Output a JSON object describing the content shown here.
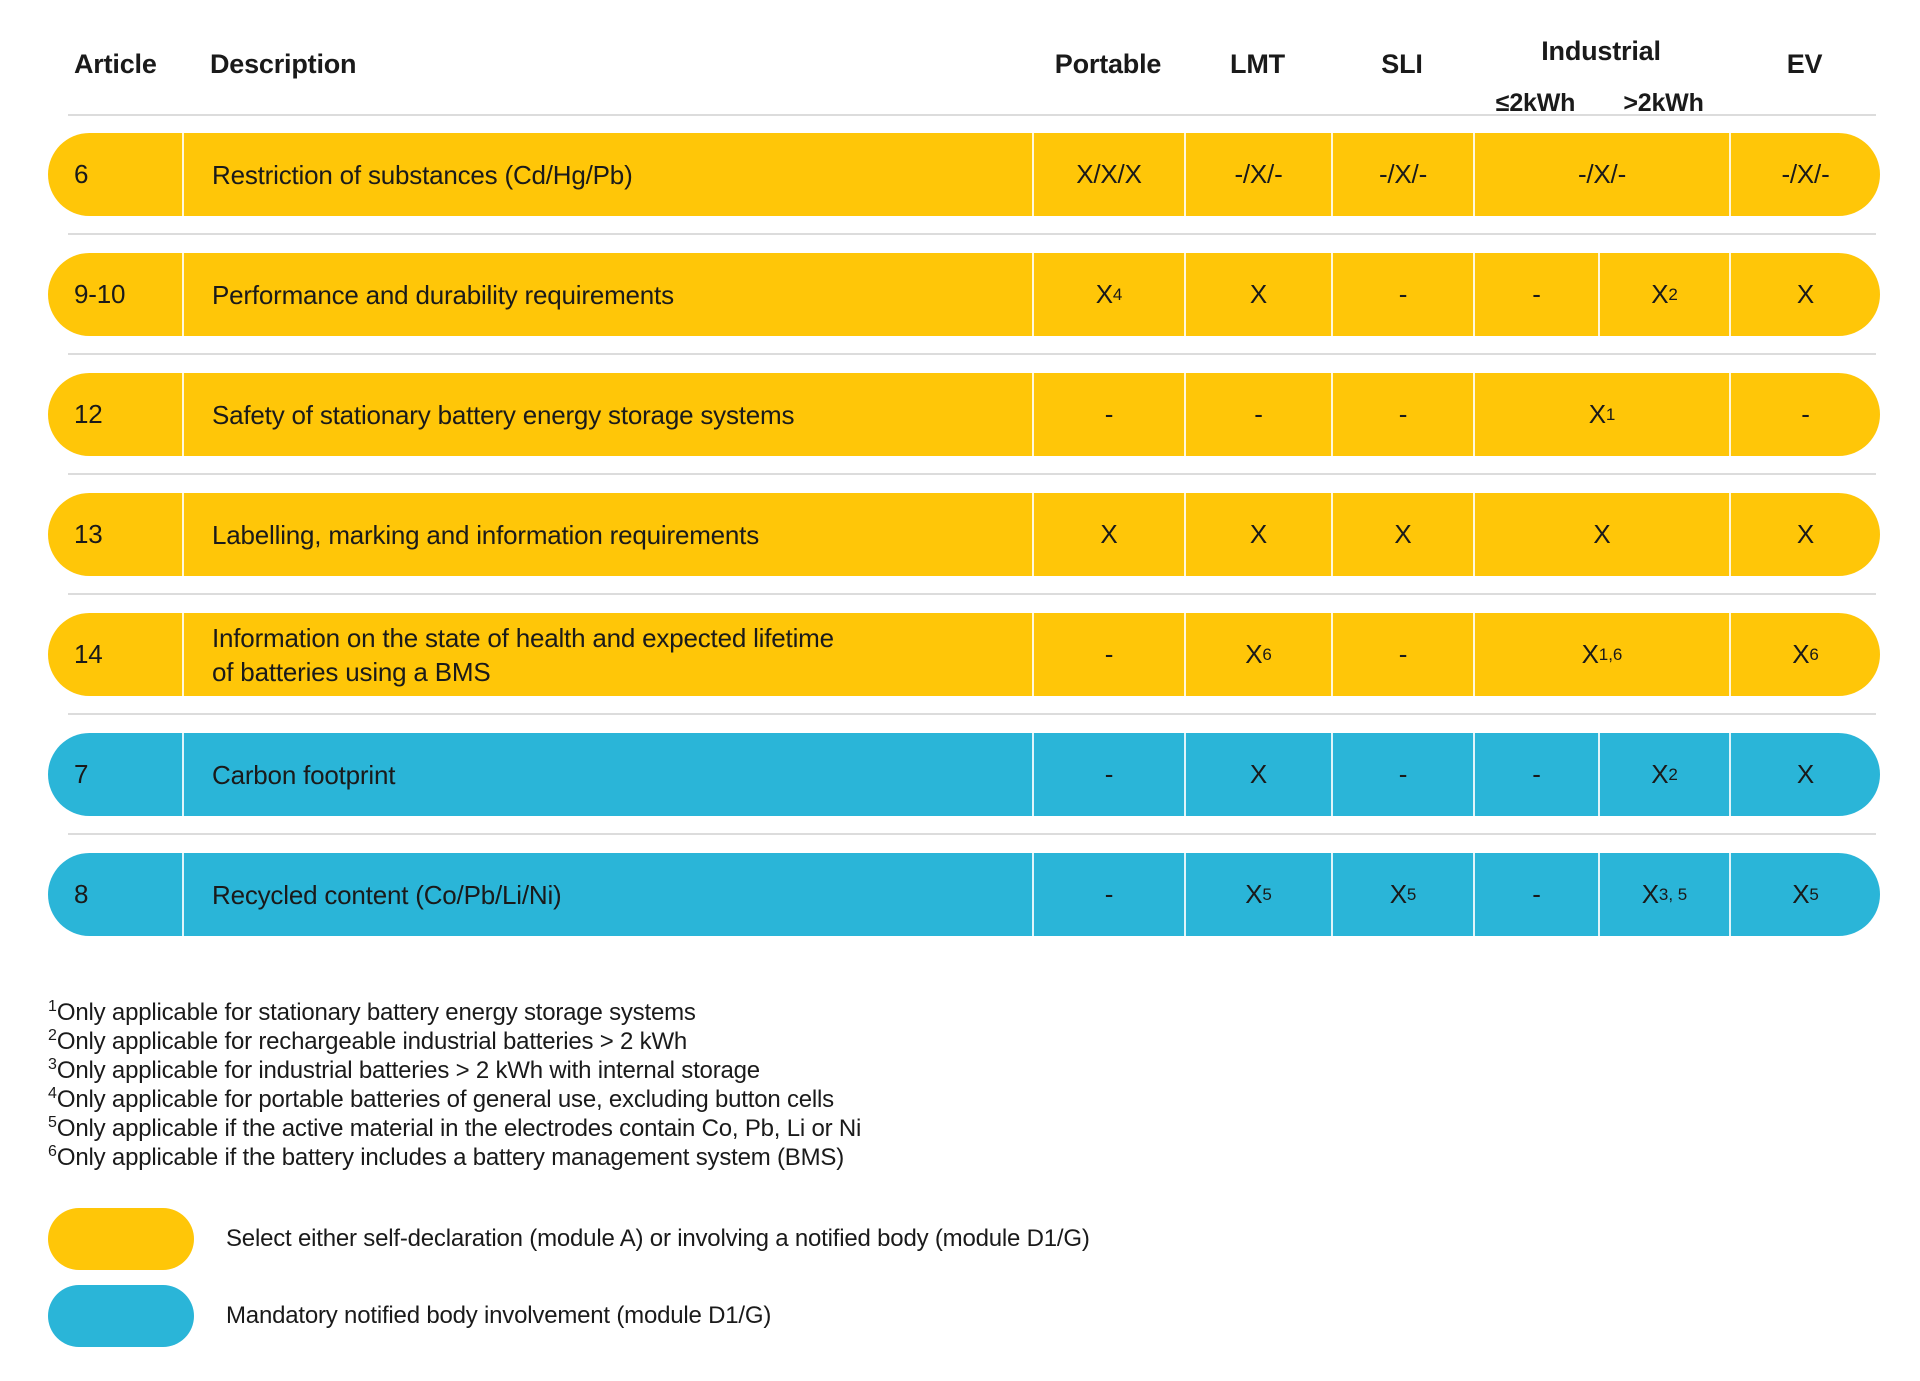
{
  "colors": {
    "yellow": "#FFC608",
    "blue": "#2AB5D8",
    "separator": "#DCDCDC",
    "text": "#1A1A1A"
  },
  "header": {
    "article": "Article",
    "description": "Description",
    "portable": "Portable",
    "lmt": "LMT",
    "sli": "SLI",
    "industrial": "Industrial",
    "industrial_low": "≤2kWh",
    "industrial_high": ">2kWh",
    "ev": "EV"
  },
  "rows": [
    {
      "article": "6",
      "description": "Restriction of substances (Cd/Hg/Pb)",
      "color": "yellow",
      "portable": {
        "text": "X/X/X"
      },
      "lmt": {
        "text": "-/X/-"
      },
      "sli": {
        "text": "-/X/-"
      },
      "industrial": {
        "text": "-/X/-"
      },
      "ev": {
        "text": "-/X/-"
      }
    },
    {
      "article": "9-10",
      "description": "Performance and durability requirements",
      "color": "yellow",
      "portable": {
        "text": "X",
        "sup": "4"
      },
      "lmt": {
        "text": "X"
      },
      "sli": {
        "text": "-"
      },
      "industrial_low": {
        "text": "-"
      },
      "industrial_high": {
        "text": "X",
        "sup": "2"
      },
      "ev": {
        "text": "X"
      }
    },
    {
      "article": "12",
      "description": "Safety of stationary battery energy storage systems",
      "color": "yellow",
      "portable": {
        "text": "-"
      },
      "lmt": {
        "text": "-"
      },
      "sli": {
        "text": "-"
      },
      "industrial": {
        "text": "X",
        "sup": "1"
      },
      "ev": {
        "text": "-"
      }
    },
    {
      "article": "13",
      "description": "Labelling, marking and information requirements",
      "color": "yellow",
      "portable": {
        "text": "X"
      },
      "lmt": {
        "text": "X"
      },
      "sli": {
        "text": "X"
      },
      "industrial": {
        "text": "X"
      },
      "ev": {
        "text": "X"
      }
    },
    {
      "article": "14",
      "description": "Information on the state of health and expected lifetime\nof batteries using a BMS",
      "color": "yellow",
      "portable": {
        "text": "-"
      },
      "lmt": {
        "text": "X",
        "sup": "6"
      },
      "sli": {
        "text": "-"
      },
      "industrial": {
        "text": "X",
        "sup": "1,6"
      },
      "ev": {
        "text": "X",
        "sup": "6"
      }
    },
    {
      "article": "7",
      "description": "Carbon footprint",
      "color": "blue",
      "portable": {
        "text": "-"
      },
      "lmt": {
        "text": "X"
      },
      "sli": {
        "text": "-"
      },
      "industrial_low": {
        "text": "-"
      },
      "industrial_high": {
        "text": "X",
        "sup": "2"
      },
      "ev": {
        "text": "X"
      }
    },
    {
      "article": "8",
      "description": "Recycled content (Co/Pb/Li/Ni)",
      "color": "blue",
      "portable": {
        "text": "-"
      },
      "lmt": {
        "text": "X",
        "sup": "5"
      },
      "sli": {
        "text": "X",
        "sup": "5"
      },
      "industrial_low": {
        "text": "-"
      },
      "industrial_high": {
        "text": "X",
        "sup": "3, 5"
      },
      "ev": {
        "text": "X",
        "sup": "5"
      }
    }
  ],
  "footnotes": [
    {
      "sup": "1",
      "text": "Only applicable for stationary battery energy storage systems"
    },
    {
      "sup": "2",
      "text": "Only applicable for rechargeable industrial batteries > 2 kWh"
    },
    {
      "sup": "3",
      "text": "Only applicable for industrial batteries > 2 kWh with internal storage"
    },
    {
      "sup": "4",
      "text": "Only applicable for portable batteries of general use, excluding button cells"
    },
    {
      "sup": "5",
      "text": "Only applicable if the active material in the electrodes contain Co, Pb, Li or Ni"
    },
    {
      "sup": "6",
      "text": "Only applicable if the battery includes a battery management system (BMS)"
    }
  ],
  "legend": [
    {
      "color": "yellow",
      "text": "Select either self-declaration (module A) or involving a notified body (module D1/G)"
    },
    {
      "color": "blue",
      "text": "Mandatory notified body involvement (module D1/G)"
    }
  ]
}
